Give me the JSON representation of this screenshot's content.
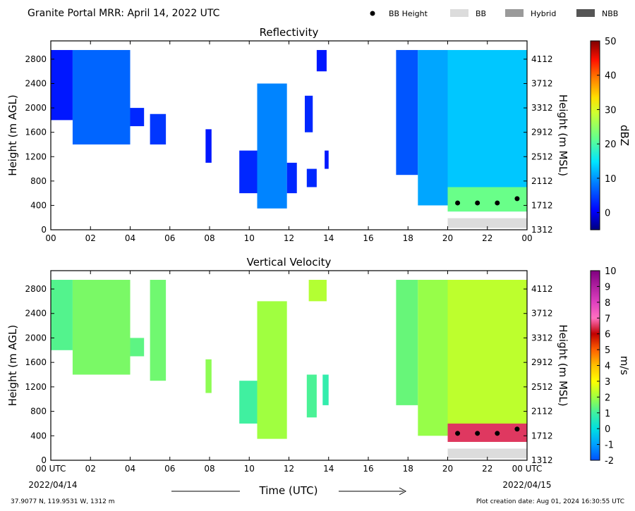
{
  "figure": {
    "title": "Granite Portal MRR:  April 14, 2022 UTC",
    "xlabel": "Time (UTC)",
    "x_start_tick": "00 UTC",
    "x_end_tick": "00 UTC",
    "start_date": "2022/04/14",
    "end_date": "2022/04/15",
    "location": "37.9077 N, 119.9531 W, 1312 m",
    "creation": "Plot creation date: Aug 01, 2024 16:30:55 UTC"
  },
  "legend": [
    {
      "label": "BB Height",
      "kind": "dot",
      "color": "#000000"
    },
    {
      "label": "BB",
      "kind": "box",
      "color": "#dcdcdc"
    },
    {
      "label": "Hybrid",
      "kind": "box",
      "color": "#9a9a9a"
    },
    {
      "label": "NBB",
      "kind": "box",
      "color": "#555555"
    }
  ],
  "chart_data": [
    {
      "type": "heatmap",
      "title": "Reflectivity",
      "xlabel": "Time (UTC)",
      "ylabel": "Height (m AGL)",
      "ylabel_right": "Height (m MSL)",
      "xlim": [
        0,
        24
      ],
      "ylim": [
        0,
        3100
      ],
      "x_ticks": [
        "00",
        "02",
        "04",
        "06",
        "08",
        "10",
        "12",
        "14",
        "16",
        "18",
        "20",
        "22",
        "00"
      ],
      "y_ticks": [
        0,
        400,
        800,
        1200,
        1600,
        2000,
        2400,
        2800
      ],
      "y_ticks_right": [
        1312,
        1712,
        2112,
        2512,
        2912,
        3312,
        3712,
        4112
      ],
      "colorbar": {
        "label": "dBZ",
        "min": -5,
        "max": 50,
        "ticks": [
          0,
          10,
          20,
          30,
          40,
          50
        ]
      },
      "segments": [
        {
          "x0": 0.0,
          "x1": 1.1,
          "bottom": 1800,
          "top": 2950,
          "value": 2
        },
        {
          "x0": 1.1,
          "x1": 4.0,
          "bottom": 1400,
          "top": 2950,
          "value": 7
        },
        {
          "x0": 4.0,
          "x1": 4.7,
          "bottom": 1700,
          "top": 2000,
          "value": 3
        },
        {
          "x0": 5.0,
          "x1": 5.8,
          "bottom": 1400,
          "top": 1900,
          "value": 4
        },
        {
          "x0": 7.8,
          "x1": 8.1,
          "bottom": 1100,
          "top": 1650,
          "value": 2
        },
        {
          "x0": 9.5,
          "x1": 10.4,
          "bottom": 600,
          "top": 1300,
          "value": 3
        },
        {
          "x0": 10.4,
          "x1": 11.9,
          "bottom": 350,
          "top": 2400,
          "value": 9
        },
        {
          "x0": 11.9,
          "x1": 12.4,
          "bottom": 600,
          "top": 1100,
          "value": 3
        },
        {
          "x0": 12.8,
          "x1": 13.2,
          "bottom": 1600,
          "top": 2200,
          "value": 3
        },
        {
          "x0": 12.9,
          "x1": 13.4,
          "bottom": 700,
          "top": 1000,
          "value": 3
        },
        {
          "x0": 13.4,
          "x1": 13.9,
          "bottom": 2600,
          "top": 2950,
          "value": 2
        },
        {
          "x0": 13.8,
          "x1": 14.0,
          "bottom": 1000,
          "top": 1300,
          "value": 2
        },
        {
          "x0": 17.4,
          "x1": 18.5,
          "bottom": 900,
          "top": 2950,
          "value": 6
        },
        {
          "x0": 18.5,
          "x1": 20.0,
          "bottom": 400,
          "top": 2950,
          "value": 11
        },
        {
          "x0": 20.0,
          "x1": 24.0,
          "bottom": 300,
          "top": 2950,
          "value": 13
        },
        {
          "x0": 20.0,
          "x1": 24.0,
          "bottom": 300,
          "top": 700,
          "value": 22
        }
      ],
      "bb_height": [
        {
          "time": 20.5,
          "height": 440
        },
        {
          "time": 21.5,
          "height": 440
        },
        {
          "time": 22.5,
          "height": 440
        },
        {
          "time": 23.5,
          "height": 510
        }
      ],
      "bb_flag": {
        "type": "BB",
        "x0": 20.0,
        "x1": 24.0
      }
    },
    {
      "type": "heatmap",
      "title": "Vertical Velocity",
      "xlabel": "Time (UTC)",
      "ylabel": "Height (m AGL)",
      "ylabel_right": "Height (m MSL)",
      "xlim": [
        0,
        24
      ],
      "ylim": [
        0,
        3100
      ],
      "x_ticks": [
        "00 UTC",
        "02",
        "04",
        "06",
        "08",
        "10",
        "12",
        "14",
        "16",
        "18",
        "20",
        "22",
        "00 UTC"
      ],
      "y_ticks": [
        0,
        400,
        800,
        1200,
        1600,
        2000,
        2400,
        2800
      ],
      "y_ticks_right": [
        1312,
        1712,
        2112,
        2512,
        2912,
        3312,
        3712,
        4112
      ],
      "colorbar": {
        "label": "m/s",
        "min": -2,
        "max": 10,
        "ticks": [
          -2,
          -1,
          0,
          1,
          2,
          3,
          4,
          5,
          6,
          7,
          8,
          9,
          10
        ]
      },
      "segments": [
        {
          "x0": 0.0,
          "x1": 1.1,
          "bottom": 1800,
          "top": 2950,
          "value": 1.2
        },
        {
          "x0": 1.1,
          "x1": 4.0,
          "bottom": 1400,
          "top": 2950,
          "value": 1.6
        },
        {
          "x0": 4.0,
          "x1": 4.7,
          "bottom": 1700,
          "top": 2000,
          "value": 1.3
        },
        {
          "x0": 5.0,
          "x1": 5.8,
          "bottom": 1300,
          "top": 2950,
          "value": 1.5
        },
        {
          "x0": 7.8,
          "x1": 8.1,
          "bottom": 1100,
          "top": 1650,
          "value": 1.8
        },
        {
          "x0": 9.5,
          "x1": 10.4,
          "bottom": 600,
          "top": 1300,
          "value": 1.0
        },
        {
          "x0": 10.4,
          "x1": 11.9,
          "bottom": 350,
          "top": 2600,
          "value": 2.0
        },
        {
          "x0": 12.9,
          "x1": 13.4,
          "bottom": 700,
          "top": 1400,
          "value": 1.1
        },
        {
          "x0": 13.0,
          "x1": 13.9,
          "bottom": 2600,
          "top": 2950,
          "value": 2.2
        },
        {
          "x0": 13.7,
          "x1": 14.0,
          "bottom": 900,
          "top": 1400,
          "value": 0.8
        },
        {
          "x0": 17.4,
          "x1": 18.5,
          "bottom": 900,
          "top": 2950,
          "value": 1.4
        },
        {
          "x0": 18.5,
          "x1": 20.0,
          "bottom": 400,
          "top": 2950,
          "value": 1.9
        },
        {
          "x0": 20.0,
          "x1": 24.0,
          "bottom": 300,
          "top": 2950,
          "value": 2.3
        },
        {
          "x0": 20.0,
          "x1": 24.0,
          "bottom": 300,
          "top": 600,
          "value": 6.5
        }
      ],
      "bb_height": [
        {
          "time": 20.5,
          "height": 440
        },
        {
          "time": 21.5,
          "height": 440
        },
        {
          "time": 22.5,
          "height": 440
        },
        {
          "time": 23.5,
          "height": 510
        }
      ],
      "bb_flag": {
        "type": "BB",
        "x0": 20.0,
        "x1": 24.0
      }
    }
  ]
}
